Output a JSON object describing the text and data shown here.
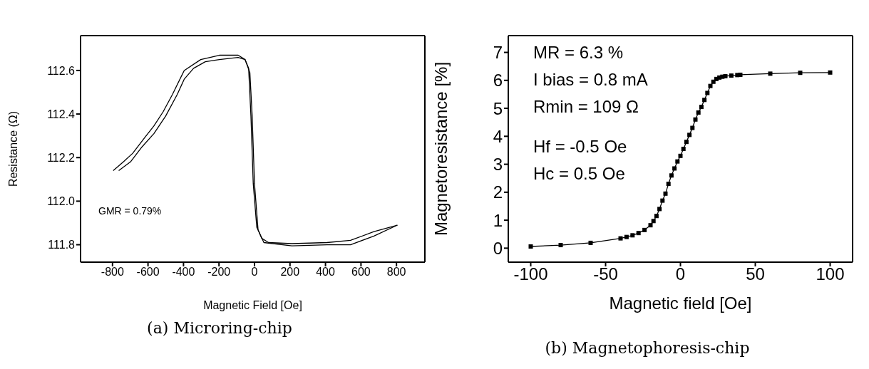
{
  "chart_data": [
    {
      "type": "line",
      "title": "(a) Microring-chip",
      "xlabel": "Magnetic Field [Oe]",
      "ylabel": "Resistance (Ω)",
      "xlim": [
        -980,
        960
      ],
      "ylim": [
        111.72,
        112.76
      ],
      "xticks": [
        -800,
        -600,
        -400,
        -200,
        0,
        200,
        400,
        600,
        800
      ],
      "yticks": [
        {
          "value": 111.8,
          "label": "111.8"
        },
        {
          "value": 112,
          "label": "112.0"
        },
        {
          "value": 112.2,
          "label": "112.2"
        },
        {
          "value": 112.4,
          "label": "112.4"
        },
        {
          "value": 112.6,
          "label": "112.6"
        }
      ],
      "marker": "none",
      "line_style": "solid",
      "annotations": [
        "GMR = 0.79%"
      ],
      "series": [
        {
          "color": "#000000",
          "x": [
            -796,
            -739,
            -686,
            -620,
            -567,
            -515,
            -462,
            -396,
            -303,
            -198,
            -92,
            -53,
            -26,
            -13,
            0,
            20,
            40,
            79,
            211,
            409,
            541,
            673,
            805
          ],
          "values": [
            112.14,
            112.18,
            112.22,
            112.29,
            112.345,
            112.41,
            112.49,
            112.6,
            112.65,
            112.67,
            112.67,
            112.65,
            112.59,
            112.39,
            112.08,
            111.87,
            111.83,
            111.81,
            111.805,
            111.81,
            111.82,
            111.86,
            111.89
          ]
        },
        {
          "color": "#000000",
          "x": [
            -765,
            -699,
            -633,
            -567,
            -501,
            -435,
            -396,
            -343,
            -277,
            -198,
            -92,
            -53,
            -33,
            -20,
            -7,
            13,
            53,
            211,
            409,
            541,
            673,
            805
          ],
          "values": [
            112.14,
            112.18,
            112.25,
            112.31,
            112.39,
            112.49,
            112.56,
            112.61,
            112.64,
            112.65,
            112.66,
            112.65,
            112.61,
            112.39,
            112.08,
            111.88,
            111.81,
            111.795,
            111.8,
            111.8,
            111.84,
            111.89
          ]
        }
      ]
    },
    {
      "type": "line",
      "title": "(b) Magnetophoresis-chip",
      "xlabel": "Magnetic field [Oe]",
      "ylabel": "Magnetoresistance [%]",
      "xlim": [
        -115,
        115
      ],
      "ylim": [
        -0.5,
        7.6
      ],
      "xticks": [
        -100,
        -50,
        0,
        50,
        100
      ],
      "yticks": [
        0,
        1,
        2,
        3,
        4,
        5,
        6,
        7
      ],
      "marker": "square",
      "line_style": "solid",
      "annotations": [
        "MR = 6.3 %",
        "I bias = 0.8 mA",
        "Rmin = 109 Ω",
        "Hf = -0.5 Oe",
        "Hc = 0.5 Oe"
      ],
      "series": [
        {
          "color": "#000000",
          "x": [
            -100,
            -80,
            -60,
            -40,
            -36,
            -32,
            -28,
            -24,
            -20,
            -18,
            -16,
            -14,
            -12,
            -10,
            -8,
            -6,
            -4,
            -2,
            0,
            2,
            4,
            6,
            8,
            10,
            12,
            14,
            16,
            18,
            20,
            22,
            24,
            26,
            28,
            30,
            34,
            38,
            40,
            60,
            80,
            100
          ],
          "values": [
            0.06,
            0.11,
            0.19,
            0.35,
            0.4,
            0.46,
            0.54,
            0.65,
            0.82,
            0.97,
            1.15,
            1.4,
            1.7,
            1.95,
            2.3,
            2.6,
            2.85,
            3.1,
            3.3,
            3.55,
            3.8,
            4.05,
            4.3,
            4.6,
            4.85,
            5.05,
            5.3,
            5.55,
            5.8,
            5.95,
            6.05,
            6.1,
            6.13,
            6.15,
            6.17,
            6.19,
            6.2,
            6.24,
            6.27,
            6.28
          ]
        }
      ]
    }
  ]
}
